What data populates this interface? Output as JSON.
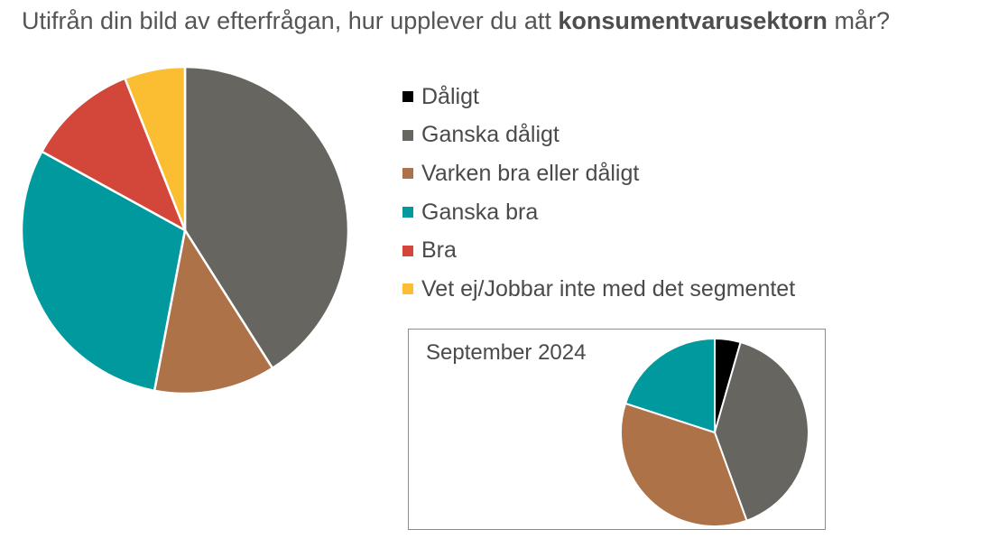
{
  "title": {
    "prefix": "Utifrån din bild av efterfrågan, hur upplever du att ",
    "bold": "konsumentvarusektorn",
    "suffix": " mår?"
  },
  "legend": [
    {
      "label": "Dåligt",
      "color": "#000000"
    },
    {
      "label": "Ganska dåligt",
      "color": "#67655f"
    },
    {
      "label": "Varken bra eller dåligt",
      "color": "#ae7249"
    },
    {
      "label": "Ganska bra",
      "color": "#009a9e"
    },
    {
      "label": "Bra",
      "color": "#d2473a"
    },
    {
      "label": "Vet ej/Jobbar inte med det segmentet",
      "color": "#fbbe33"
    }
  ],
  "chart_data": [
    {
      "type": "pie",
      "title": "",
      "categories": [
        "Dåligt",
        "Ganska dåligt",
        "Varken bra eller dåligt",
        "Ganska bra",
        "Bra",
        "Vet ej/Jobbar inte med det segmentet"
      ],
      "values": [
        0,
        41,
        12,
        30,
        11,
        6
      ],
      "unit": "%"
    },
    {
      "type": "pie",
      "title": "September 2024",
      "categories": [
        "Dåligt",
        "Ganska dåligt",
        "Varken bra eller dåligt",
        "Ganska bra",
        "Bra",
        "Vet ej/Jobbar inte med det segmentet"
      ],
      "values": [
        4,
        36,
        32,
        18,
        0,
        0
      ],
      "unit": "%"
    }
  ]
}
